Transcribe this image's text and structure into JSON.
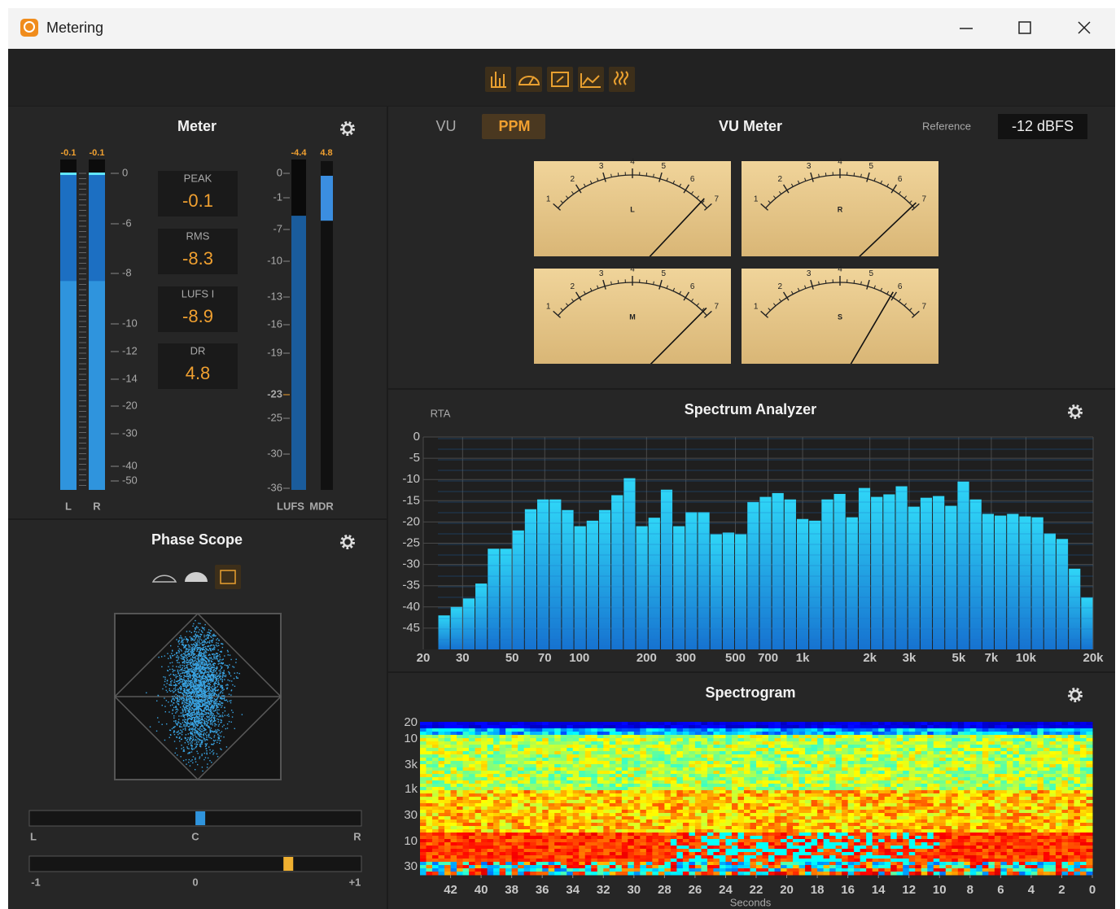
{
  "window": {
    "title": "Metering"
  },
  "meter": {
    "title": "Meter",
    "channels": [
      {
        "name": "L",
        "peak": -0.1,
        "rms": -8.3
      },
      {
        "name": "R",
        "peak": -0.1,
        "rms": -8.3
      }
    ],
    "scale": [
      0,
      -6,
      -8,
      -10,
      -12,
      -14,
      -20,
      -30,
      -40,
      -50
    ],
    "stats": [
      {
        "label": "PEAK",
        "value": -0.1
      },
      {
        "label": "RMS",
        "value": -8.3
      },
      {
        "label": "LUFS I",
        "value": -8.9
      },
      {
        "label": "DR",
        "value": 4.8
      }
    ],
    "lufs": {
      "name": "LUFS",
      "value": -4.4,
      "scale": [
        0,
        -1,
        -7,
        -10,
        -13,
        -16,
        -19,
        -23,
        -25,
        -30,
        -36
      ],
      "target": -23
    },
    "mdr": {
      "name": "MDR",
      "value": 4.8
    }
  },
  "phase_scope": {
    "title": "Phase Scope",
    "balance": {
      "value": 0.03,
      "lim": [
        -1,
        1
      ],
      "labels": [
        "L",
        "C",
        "R"
      ]
    },
    "correlation": {
      "value": 0.56,
      "ticks": [
        -1,
        0,
        {
          "value": 1,
          "label": "+1"
        }
      ]
    }
  },
  "vu": {
    "title": "VU Meter",
    "modes": [
      "VU",
      "PPM"
    ],
    "active_mode": 1,
    "reference_label": "Reference",
    "reference": "-12 dBFS",
    "scale": [
      1,
      2,
      3,
      4,
      5,
      6,
      7
    ],
    "meters": [
      {
        "label": "L",
        "value": 6.7
      },
      {
        "label": "R",
        "value": 6.9
      },
      {
        "label": "M",
        "value": 6.8
      },
      {
        "label": "S",
        "value": 5.9
      }
    ]
  },
  "spectrum": {
    "type": "bar",
    "mode": "RTA",
    "title": "Spectrum Analyzer",
    "values": [
      -42,
      -40,
      -38,
      -34.5,
      -26.3,
      -26.3,
      -22,
      -17,
      -14.7,
      -14.7,
      -17.2,
      -21,
      -19.7,
      -17.2,
      -13.7,
      -9.7,
      -21,
      -19,
      -12.4,
      -21,
      -17.7,
      -17.7,
      -22.9,
      -22.5,
      -22.9,
      -15.3,
      -14.1,
      -13.2,
      -14.7,
      -19.3,
      -19.7,
      -14.7,
      -13.4,
      -18.9,
      -12,
      -14.1,
      -13.5,
      -11.6,
      -16.4,
      -14.3,
      -13.9,
      -16.2,
      -10.5,
      -14.7,
      -18.1,
      -18.5,
      -18.1,
      -18.7,
      -18.9,
      -22.7,
      -24,
      -31,
      -37.8
    ],
    "ylim": [
      -50,
      0
    ],
    "yticks": [
      0,
      -5,
      -10,
      -15,
      -20,
      -25,
      -30,
      -35,
      -40,
      -45
    ],
    "xlim": [
      20,
      20000
    ],
    "log_x": true,
    "grid": true,
    "xticks": [
      20,
      30,
      50,
      70,
      100,
      200,
      300,
      500,
      700,
      {
        "value": 1000,
        "label": "1k"
      },
      {
        "value": 2000,
        "label": "2k"
      },
      {
        "value": 3000,
        "label": "3k"
      },
      {
        "value": 5000,
        "label": "5k"
      },
      {
        "value": 7000,
        "label": "7k"
      },
      {
        "value": 10000,
        "label": "10k"
      },
      {
        "value": 20000,
        "label": "20k"
      }
    ]
  },
  "spectrogram": {
    "title": "Spectrogram",
    "ylabels": [
      20,
      10,
      "3k",
      "1k",
      30,
      10,
      30
    ],
    "xlim": [
      44,
      0
    ],
    "xticks": [
      42,
      40,
      38,
      36,
      34,
      32,
      30,
      28,
      26,
      24,
      22,
      20,
      18,
      16,
      14,
      12,
      10,
      8,
      6,
      4,
      2,
      0
    ],
    "xlabel": "Seconds"
  }
}
